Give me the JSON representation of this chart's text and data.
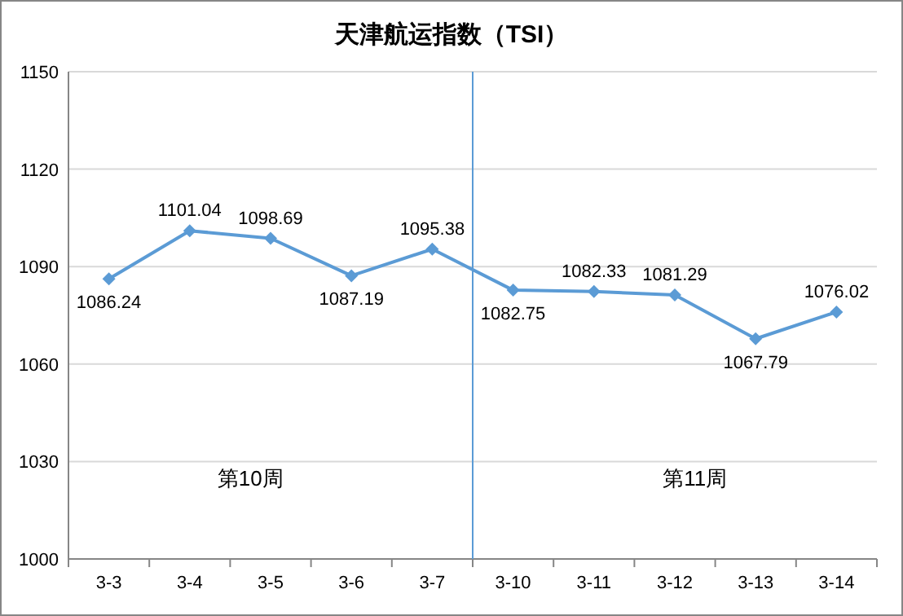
{
  "chart_data": {
    "type": "line",
    "title": "天津航运指数（TSI）",
    "categories": [
      "3-3",
      "3-4",
      "3-5",
      "3-6",
      "3-7",
      "3-10",
      "3-11",
      "3-12",
      "3-13",
      "3-14"
    ],
    "series": [
      {
        "color": "#5b9bd5",
        "values": [
          1086.24,
          1101.04,
          1098.69,
          1087.19,
          1095.38,
          1082.75,
          1082.33,
          1081.29,
          1067.79,
          1076.02
        ]
      }
    ],
    "ylim": [
      1000,
      1150
    ],
    "yticks": [
      1000,
      1030,
      1060,
      1090,
      1120,
      1150
    ],
    "grid": "y",
    "marker": "diamond",
    "line_style": "solid",
    "data_labels": true,
    "ref_lines": [
      {
        "axis": "x",
        "value": "3-10",
        "color": "#5b9bd5"
      }
    ],
    "annotations": [
      "第10周",
      "第11周"
    ]
  }
}
